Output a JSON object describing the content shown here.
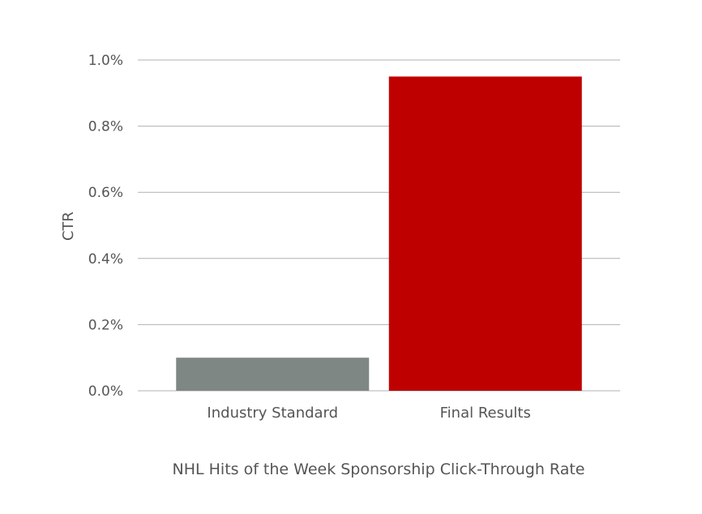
{
  "chart_data": {
    "type": "bar",
    "categories": [
      "Industry Standard",
      "Final Results"
    ],
    "values": [
      0.1,
      0.95
    ],
    "bar_colors": [
      "#7f8784",
      "#be0000"
    ],
    "ylabel": "CTR",
    "xlabel": "NHL Hits of the Week Sponsorship Click-Through Rate",
    "ylim": [
      0,
      1.0
    ],
    "yticks": [
      0.0,
      0.2,
      0.4,
      0.6,
      0.8,
      1.0
    ],
    "ytick_labels": [
      "0.0%",
      "0.2%",
      "0.4%",
      "0.6%",
      "0.8%",
      "1.0%"
    ],
    "grid": true,
    "gridline_color": "#b0b0b0",
    "text_color": "#555555"
  }
}
